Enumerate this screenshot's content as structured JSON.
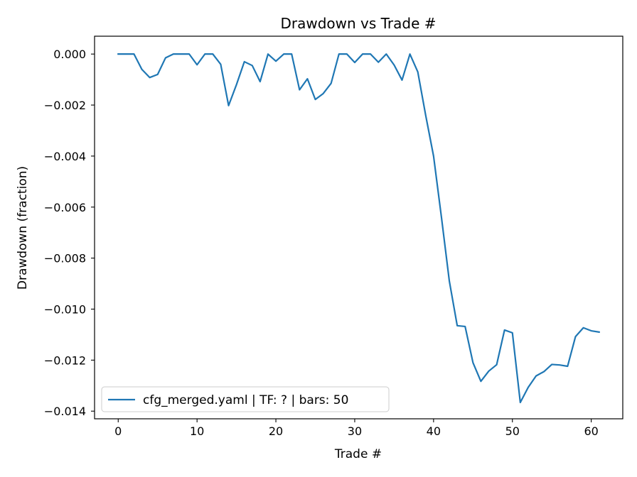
{
  "chart_data": {
    "type": "line",
    "title": "Drawdown vs Trade #",
    "xlabel": "Trade #",
    "ylabel": "Drawdown (fraction)",
    "xlim": [
      -3,
      64
    ],
    "ylim": [
      -0.0143,
      0.0007
    ],
    "xticks": [
      0,
      10,
      20,
      30,
      40,
      50,
      60
    ],
    "xtick_labels": [
      "0",
      "10",
      "20",
      "30",
      "40",
      "50",
      "60"
    ],
    "yticks": [
      0.0,
      -0.002,
      -0.004,
      -0.006,
      -0.008,
      -0.01,
      -0.012,
      -0.014
    ],
    "ytick_labels": [
      "0.000",
      "−0.002",
      "−0.004",
      "−0.006",
      "−0.008",
      "−0.010",
      "−0.012",
      "−0.014"
    ],
    "grid": false,
    "legend_position": "lower-left",
    "series": [
      {
        "name": "cfg_merged.yaml | TF: ? | bars: 50",
        "color": "#1f77b4",
        "x": [
          0,
          1,
          2,
          3,
          4,
          5,
          6,
          7,
          8,
          9,
          10,
          11,
          12,
          13,
          14,
          15,
          16,
          17,
          18,
          19,
          20,
          21,
          22,
          23,
          24,
          25,
          26,
          27,
          28,
          29,
          30,
          31,
          32,
          33,
          34,
          35,
          36,
          37,
          38,
          39,
          40,
          41,
          42,
          43,
          44,
          45,
          46,
          47,
          48,
          49,
          50,
          51,
          52,
          53,
          54,
          55,
          56,
          57,
          58,
          59,
          60,
          61
        ],
        "values": [
          0.0,
          0.0,
          0.0,
          -0.0006,
          -0.00092,
          -0.0008,
          -0.00015,
          0.0,
          0.0,
          0.0,
          -0.00042,
          0.0,
          0.0,
          -0.0004,
          -0.00202,
          -0.0012,
          -0.0003,
          -0.00045,
          -0.00108,
          0.0,
          -0.00028,
          0.0,
          0.0,
          -0.0014,
          -0.00097,
          -0.00178,
          -0.00155,
          -0.00115,
          0.0,
          0.0,
          -0.00033,
          0.0,
          0.0,
          -0.00032,
          0.0,
          -0.00043,
          -0.00102,
          0.0,
          -0.0007,
          -0.0024,
          -0.004,
          -0.0064,
          -0.0089,
          -0.01065,
          -0.01068,
          -0.0121,
          -0.01283,
          -0.01243,
          -0.01218,
          -0.01082,
          -0.01093,
          -0.01366,
          -0.01307,
          -0.01262,
          -0.01245,
          -0.01217,
          -0.01219,
          -0.01224,
          -0.01108,
          -0.01073,
          -0.01085,
          -0.0109
        ]
      }
    ]
  }
}
